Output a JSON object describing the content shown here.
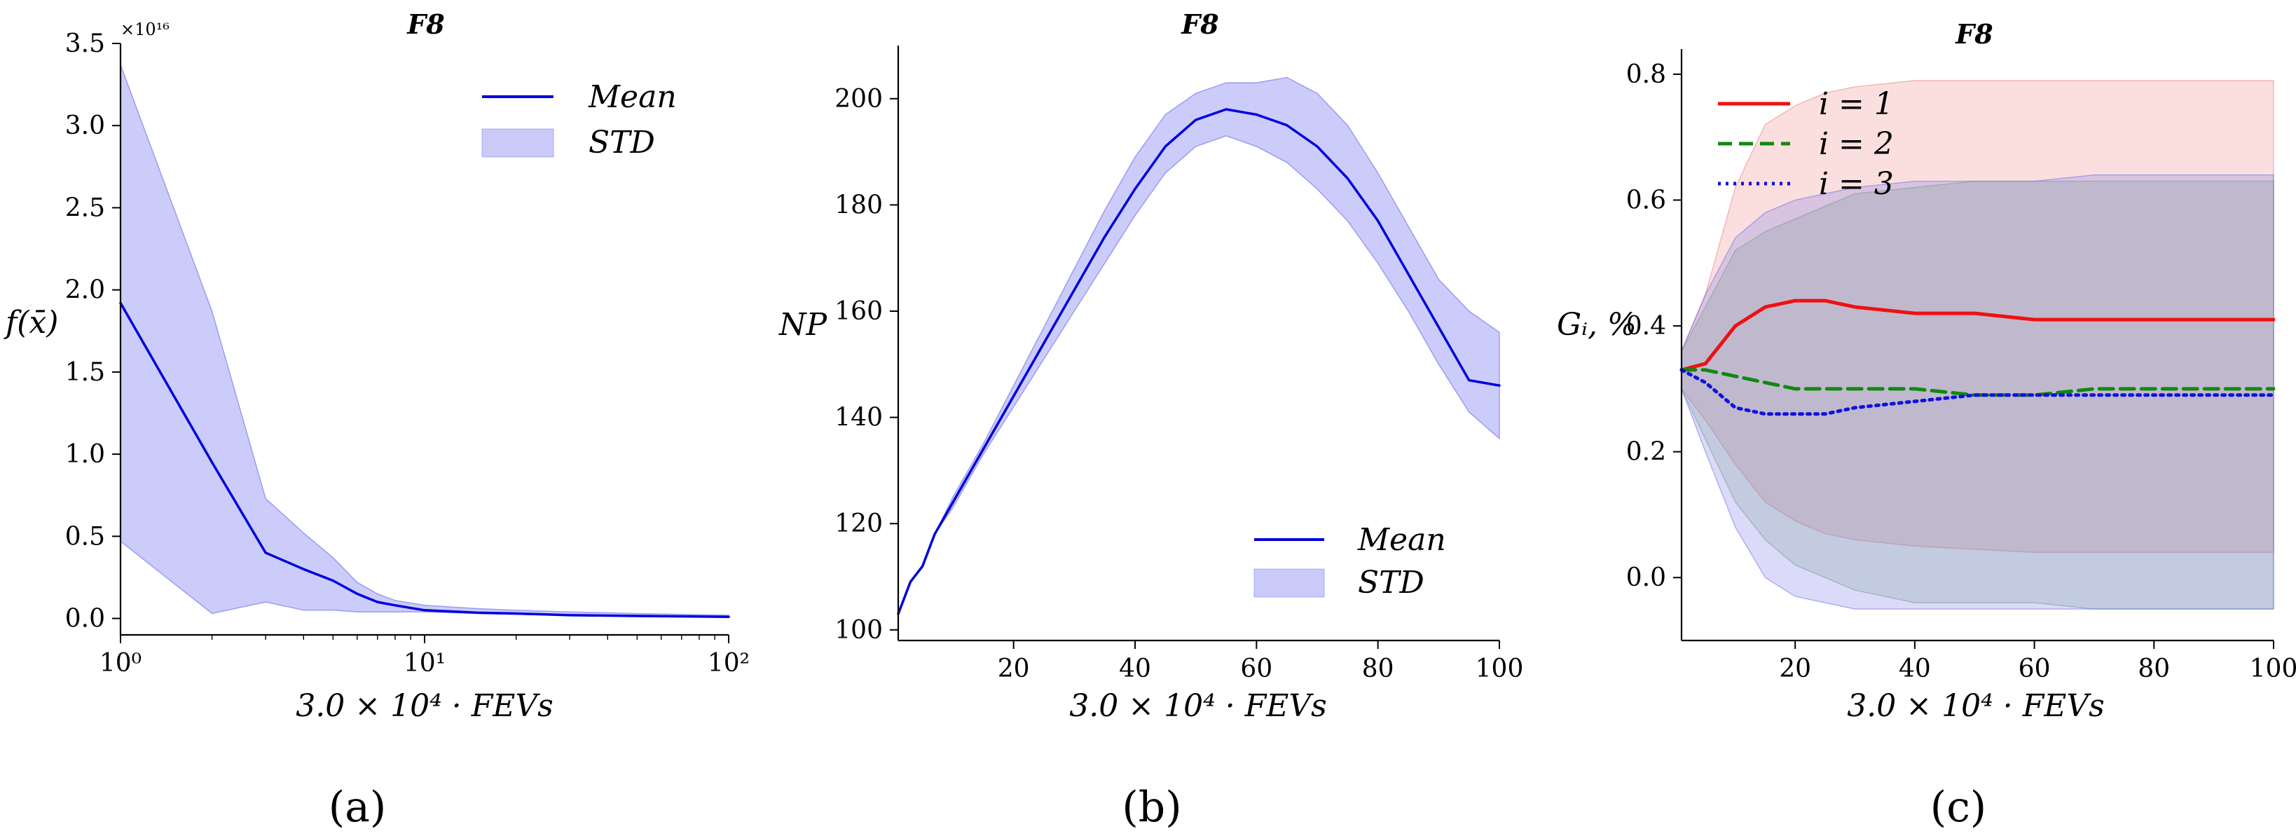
{
  "chart_data": [
    {
      "type": "line",
      "panel": "(a)",
      "title": "F8",
      "xlabel": "3.0 × 10⁴ · FEVs",
      "ylabel": "f(x̄)",
      "xscale": "log",
      "xlim": [
        1,
        100
      ],
      "ylim": [
        -0.1,
        3.5
      ],
      "scale_note": "×10¹⁶",
      "x_tick_labels": [
        "10⁰",
        "10¹",
        "10²"
      ],
      "y_tick_labels": [
        "0.0",
        "0.5",
        "1.0",
        "1.5",
        "2.0",
        "2.5",
        "3.0",
        "3.5"
      ],
      "legend_position": "top-right",
      "series": [
        {
          "name": "Mean",
          "color": "#0000dd",
          "x": [
            1,
            2,
            3,
            4,
            5,
            6,
            7,
            8,
            10,
            15,
            20,
            30,
            50,
            100
          ],
          "values": [
            1.92,
            0.95,
            0.4,
            0.3,
            0.23,
            0.15,
            0.1,
            0.08,
            0.05,
            0.035,
            0.03,
            0.02,
            0.015,
            0.01
          ],
          "std_lower": [
            0.47,
            0.03,
            0.1,
            0.05,
            0.05,
            0.04,
            0.04,
            0.04,
            0.04,
            0.03,
            0.025,
            0.018,
            0.012,
            0.008
          ],
          "std_upper": [
            3.37,
            1.87,
            0.73,
            0.52,
            0.37,
            0.22,
            0.15,
            0.11,
            0.08,
            0.06,
            0.05,
            0.04,
            0.03,
            0.02
          ]
        }
      ],
      "legend": [
        {
          "label": "Mean",
          "kind": "line"
        },
        {
          "label": "STD",
          "kind": "band"
        }
      ]
    },
    {
      "type": "line",
      "panel": "(b)",
      "title": "F8",
      "xlabel": "3.0 × 10⁴ · FEVs",
      "ylabel": "NP",
      "xlim": [
        1,
        100
      ],
      "ylim": [
        98,
        210
      ],
      "x_tick_labels": [
        "20",
        "40",
        "60",
        "80",
        "100"
      ],
      "y_tick_labels": [
        "100",
        "120",
        "140",
        "160",
        "180",
        "200"
      ],
      "legend_position": "bottom-right",
      "series": [
        {
          "name": "Mean",
          "color": "#0000dd",
          "x": [
            1,
            3,
            5,
            7,
            10,
            15,
            20,
            25,
            30,
            35,
            40,
            45,
            50,
            55,
            60,
            65,
            70,
            75,
            80,
            85,
            90,
            95,
            100
          ],
          "values": [
            103,
            109,
            112,
            118,
            124,
            134,
            144,
            154,
            164,
            174,
            183,
            191,
            196,
            198,
            197,
            195,
            191,
            185,
            177,
            167,
            157,
            147,
            146
          ],
          "std_lower": [
            103,
            109,
            112,
            118,
            123,
            133,
            142,
            151,
            160,
            169,
            178,
            186,
            191,
            193,
            191,
            188,
            183,
            177,
            169,
            160,
            150,
            141,
            136
          ],
          "std_upper": [
            103,
            109,
            112,
            118,
            125,
            135,
            146,
            157,
            168,
            179,
            189,
            197,
            201,
            203,
            203,
            204,
            201,
            195,
            186,
            176,
            166,
            160,
            156
          ]
        }
      ],
      "legend": [
        {
          "label": "Mean",
          "kind": "line"
        },
        {
          "label": "STD",
          "kind": "band"
        }
      ]
    },
    {
      "type": "line",
      "panel": "(c)",
      "title": "F8",
      "xlabel": "3.0 × 10⁴ · FEVs",
      "ylabel": "Gᵢ, %",
      "xlim": [
        1,
        100
      ],
      "ylim": [
        -0.1,
        0.84
      ],
      "x_tick_labels": [
        "20",
        "40",
        "60",
        "80",
        "100"
      ],
      "y_tick_labels": [
        "0.0",
        "0.2",
        "0.4",
        "0.6",
        "0.8"
      ],
      "legend_position": "top-left",
      "series": [
        {
          "name": "i = 1",
          "color": "#ee1111",
          "dash": "solid",
          "x": [
            1,
            5,
            10,
            15,
            20,
            25,
            30,
            40,
            50,
            60,
            70,
            80,
            90,
            100
          ],
          "values": [
            0.33,
            0.34,
            0.4,
            0.43,
            0.44,
            0.44,
            0.43,
            0.42,
            0.42,
            0.41,
            0.41,
            0.41,
            0.41,
            0.41
          ],
          "std_lower": [
            0.3,
            0.25,
            0.18,
            0.12,
            0.09,
            0.07,
            0.06,
            0.05,
            0.045,
            0.04,
            0.04,
            0.04,
            0.04,
            0.04
          ],
          "std_upper": [
            0.36,
            0.45,
            0.62,
            0.72,
            0.75,
            0.77,
            0.78,
            0.79,
            0.79,
            0.79,
            0.79,
            0.79,
            0.79,
            0.79
          ]
        },
        {
          "name": "i = 2",
          "color": "#118811",
          "dash": "dashed",
          "x": [
            1,
            5,
            10,
            15,
            20,
            25,
            30,
            40,
            50,
            60,
            70,
            80,
            90,
            100
          ],
          "values": [
            0.33,
            0.33,
            0.32,
            0.31,
            0.3,
            0.3,
            0.3,
            0.3,
            0.29,
            0.29,
            0.3,
            0.3,
            0.3,
            0.3
          ],
          "std_lower": [
            0.3,
            0.22,
            0.12,
            0.06,
            0.02,
            0.0,
            -0.02,
            -0.04,
            -0.04,
            -0.04,
            -0.05,
            -0.05,
            -0.05,
            -0.05
          ],
          "std_upper": [
            0.36,
            0.43,
            0.52,
            0.55,
            0.57,
            0.59,
            0.61,
            0.62,
            0.63,
            0.63,
            0.63,
            0.63,
            0.63,
            0.63
          ]
        },
        {
          "name": "i = 3",
          "color": "#1111dd",
          "dash": "dotted",
          "x": [
            1,
            5,
            10,
            15,
            20,
            25,
            30,
            40,
            50,
            60,
            70,
            80,
            90,
            100
          ],
          "values": [
            0.33,
            0.31,
            0.27,
            0.26,
            0.26,
            0.26,
            0.27,
            0.28,
            0.29,
            0.29,
            0.29,
            0.29,
            0.29,
            0.29
          ],
          "std_lower": [
            0.3,
            0.2,
            0.08,
            0.0,
            -0.03,
            -0.04,
            -0.05,
            -0.05,
            -0.05,
            -0.05,
            -0.05,
            -0.05,
            -0.05,
            -0.05
          ],
          "std_upper": [
            0.36,
            0.45,
            0.54,
            0.58,
            0.6,
            0.61,
            0.62,
            0.63,
            0.63,
            0.63,
            0.64,
            0.64,
            0.64,
            0.64
          ]
        }
      ],
      "legend": [
        {
          "label": "i = 1",
          "kind": "line"
        },
        {
          "label": "i = 2",
          "kind": "line"
        },
        {
          "label": "i = 3",
          "kind": "line"
        }
      ]
    }
  ]
}
